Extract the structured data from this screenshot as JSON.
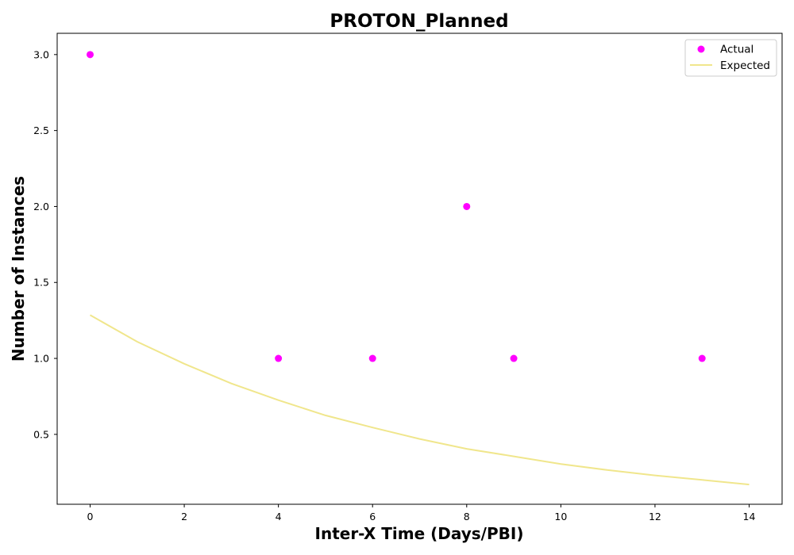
{
  "chart_data": {
    "type": "scatter",
    "title": "PROTON_Planned",
    "xlabel": "Inter-X Time (Days/PBI)",
    "ylabel": "Number of Instances",
    "xlim": [
      -0.7,
      14.7
    ],
    "ylim": [
      0.04,
      3.14
    ],
    "xticks": [
      0,
      2,
      4,
      6,
      8,
      10,
      12,
      14
    ],
    "yticks": [
      0.5,
      1.0,
      1.5,
      2.0,
      2.5,
      3.0
    ],
    "grid": false,
    "legend_position": "top-right",
    "series": [
      {
        "name": "Actual",
        "kind": "scatter",
        "color": "#ff00ff",
        "x": [
          0,
          4,
          6,
          8,
          9,
          13
        ],
        "y": [
          3.0,
          1.0,
          1.0,
          2.0,
          1.0,
          1.0
        ]
      },
      {
        "name": "Expected",
        "kind": "line",
        "color": "#f0e68c",
        "x": [
          0,
          1,
          2,
          3,
          4,
          5,
          6,
          7,
          8,
          9,
          10,
          11,
          12,
          13,
          14
        ],
        "y": [
          1.285,
          1.11,
          0.965,
          0.835,
          0.725,
          0.625,
          0.545,
          0.47,
          0.405,
          0.355,
          0.305,
          0.265,
          0.23,
          0.2,
          0.17
        ]
      }
    ]
  }
}
